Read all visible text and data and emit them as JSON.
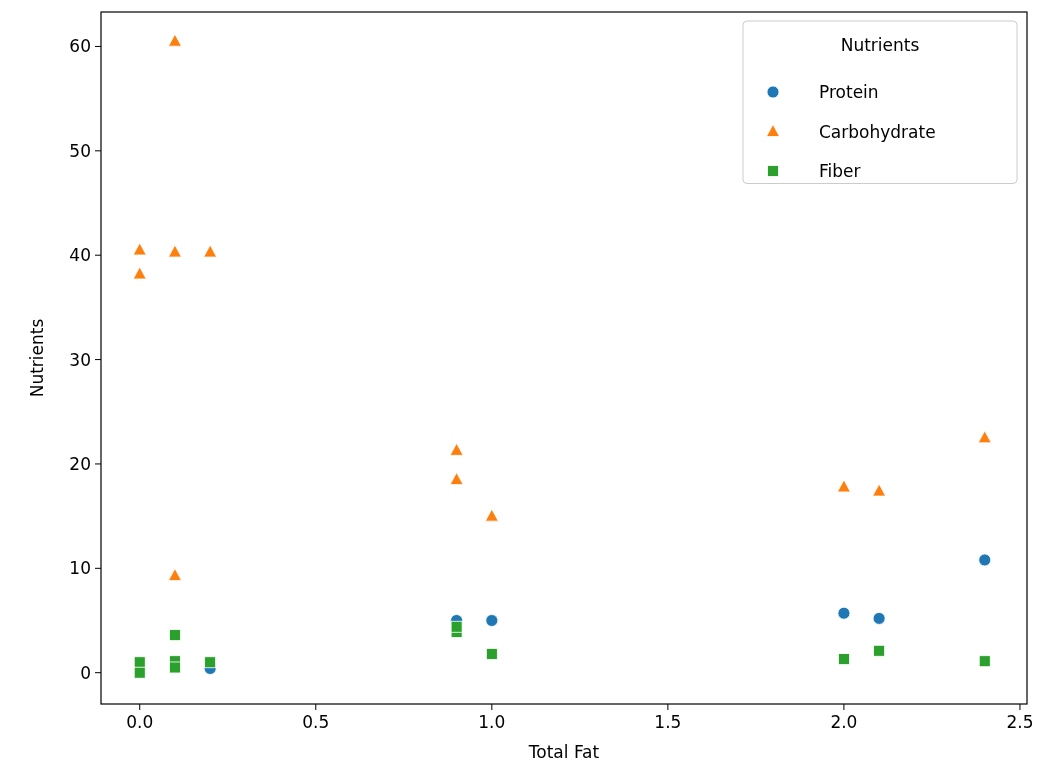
{
  "chart_data": {
    "type": "scatter",
    "xlabel": "Total Fat",
    "ylabel": "Nutrients",
    "legend_title": "Nutrients",
    "legend": "top right",
    "grid": false,
    "x": [
      0,
      0,
      0.1,
      0.1,
      0.1,
      0.2,
      0.9,
      0.9,
      1.0,
      2.0,
      2.1,
      2.4
    ],
    "xlim": [
      -0.11,
      2.52
    ],
    "xticks": [
      {
        "value": 0,
        "label": "0.0"
      },
      {
        "value": 0.5,
        "label": "0.5"
      },
      {
        "value": 1,
        "label": "1.0"
      },
      {
        "value": 1.5,
        "label": "1.5"
      },
      {
        "value": 2,
        "label": "2.0"
      },
      {
        "value": 2.5,
        "label": "2.5"
      }
    ],
    "ylim": [
      -3,
      63.3
    ],
    "yticks": [
      0,
      10,
      20,
      30,
      40,
      50,
      60
    ],
    "series": [
      {
        "name": "Protein",
        "color": "#1f77b4",
        "marker": "circle",
        "values": [
          null,
          null,
          null,
          null,
          null,
          0.4,
          5.0,
          null,
          5.0,
          5.7,
          5.2,
          10.8
        ]
      },
      {
        "name": "Carbohydrate",
        "color": "#ff7f0e",
        "marker": "triangle",
        "values": [
          40.5,
          38.2,
          60.5,
          40.3,
          9.3,
          40.3,
          21.3,
          18.5,
          15.0,
          17.8,
          17.4,
          22.5
        ]
      },
      {
        "name": "Fiber",
        "color": "#2ca02c",
        "marker": "square",
        "values": [
          1.0,
          0.0,
          3.6,
          1.1,
          0.5,
          1.0,
          3.9,
          4.4,
          1.8,
          1.3,
          2.1,
          1.1
        ]
      }
    ]
  }
}
